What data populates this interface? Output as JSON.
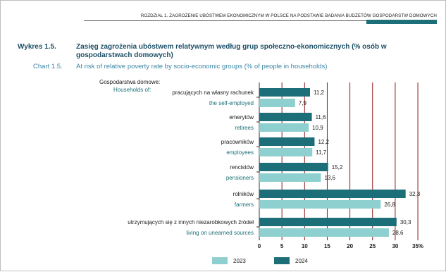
{
  "header": {
    "text": "ROZDZIAŁ 1.  ZAGROŻENIE UBÓSTWEM EKONOMICZNYM W POLSCE NA PODSTAWIE BADANIA BUDŻETÓW GOSPODARSTW DOMOWYCH"
  },
  "figure": {
    "label_pl": "Wykres 1.5.",
    "label_en": "Chart 1.5.",
    "title_pl": "Zasięg zagrożenia ubóstwem relatywnym według grup społeczno-ekonomicznych (% osób w gospodarstwach domowych)",
    "title_en": "At risk of relative poverty rate by socio-economic groups (% of people in households)"
  },
  "colors": {
    "y2023": "#8ecfcf",
    "y2024": "#1c6e78",
    "grid": "#8b1a1a",
    "axis": "#333333"
  },
  "chart_data": {
    "type": "bar",
    "orientation": "horizontal",
    "group_header_pl": "Gospodarstwa domowe:",
    "group_header_en": "Households of:",
    "categories": [
      {
        "pl": "pracujących na własny rachunek",
        "en": "the self-employed"
      },
      {
        "pl": "emerytów",
        "en": "retirees"
      },
      {
        "pl": "pracowników",
        "en": "employees"
      },
      {
        "pl": "rencistów",
        "en": "pensioners"
      },
      {
        "pl": "rolników",
        "en": "farmers"
      },
      {
        "pl": "utrzymujących się z innych niezarobkowych źródeł",
        "en": "living on unearned sources"
      }
    ],
    "series": [
      {
        "name": "2024",
        "values": [
          11.2,
          11.6,
          12.2,
          15.2,
          32.3,
          30.3
        ],
        "labels": [
          "11,2",
          "11,6",
          "12,2",
          "15,2",
          "32,3",
          "30,3"
        ]
      },
      {
        "name": "2023",
        "values": [
          7.9,
          10.9,
          11.7,
          13.6,
          26.8,
          28.6
        ],
        "labels": [
          "7,9",
          "10,9",
          "11,7",
          "13,6",
          "26,8",
          "28,6"
        ]
      }
    ],
    "xlim": [
      0,
      35
    ],
    "xticks": [
      0,
      5,
      10,
      15,
      20,
      25,
      30,
      35
    ],
    "xtick_labels": [
      "0",
      "5",
      "10",
      "15",
      "20",
      "25",
      "30",
      "35%"
    ],
    "grid": true,
    "legend": {
      "placement": "bottom",
      "items": [
        "2023",
        "2024"
      ]
    }
  }
}
